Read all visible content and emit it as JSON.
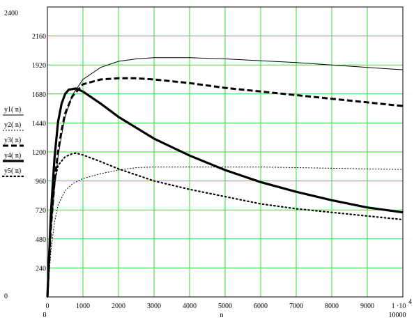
{
  "chart_data": {
    "type": "line",
    "xlabel": "n",
    "ylabel": "",
    "xlim": [
      0,
      10000
    ],
    "ylim": [
      0,
      2400
    ],
    "grid": true,
    "grid_color": "#33dd33",
    "line_color": "#000000",
    "x_ticks": [
      0,
      1000,
      2000,
      3000,
      4000,
      5000,
      6000,
      7000,
      8000,
      9000,
      10000
    ],
    "x_tick_labels": [
      "0",
      "1000",
      "2000",
      "3000",
      "4000",
      "5000",
      "6000",
      "7000",
      "8000",
      "9000",
      "1 ·10"
    ],
    "x_tick_exponent": "4",
    "x_range_min_label": "0",
    "x_range_max_label": "10000",
    "y_ticks": [
      0,
      240,
      480,
      720,
      960,
      1200,
      1440,
      1680,
      1920,
      2160,
      2400
    ],
    "y_tick_labels": [
      "0",
      "240",
      "480",
      "720",
      "960",
      "1200",
      "1440",
      "1680",
      "1920",
      "2160",
      "2400"
    ],
    "y_range_min_label": "0",
    "y_range_max_label": "2400",
    "legend_position": "left",
    "series": [
      {
        "name": "y1( n)",
        "style": "solid-thin",
        "points": [
          [
            0,
            0
          ],
          [
            100,
            550
          ],
          [
            200,
            900
          ],
          [
            300,
            1160
          ],
          [
            400,
            1340
          ],
          [
            500,
            1490
          ],
          [
            700,
            1670
          ],
          [
            1000,
            1800
          ],
          [
            1500,
            1900
          ],
          [
            2000,
            1950
          ],
          [
            2500,
            1970
          ],
          [
            3000,
            1980
          ],
          [
            4000,
            1980
          ],
          [
            5000,
            1970
          ],
          [
            6000,
            1955
          ],
          [
            7000,
            1940
          ],
          [
            8000,
            1920
          ],
          [
            9000,
            1900
          ],
          [
            10000,
            1880
          ]
        ]
      },
      {
        "name": "y2( n)",
        "style": "dashed-thin",
        "points": [
          [
            0,
            0
          ],
          [
            100,
            380
          ],
          [
            200,
            620
          ],
          [
            300,
            760
          ],
          [
            500,
            880
          ],
          [
            700,
            935
          ],
          [
            1000,
            980
          ],
          [
            1500,
            1020
          ],
          [
            2000,
            1050
          ],
          [
            2500,
            1070
          ],
          [
            3000,
            1075
          ],
          [
            4000,
            1075
          ],
          [
            5000,
            1075
          ],
          [
            6000,
            1075
          ],
          [
            7000,
            1070
          ],
          [
            8000,
            1065
          ],
          [
            9000,
            1060
          ],
          [
            10000,
            1055
          ]
        ]
      },
      {
        "name": "y3( n)",
        "style": "dashed-thick",
        "points": [
          [
            0,
            0
          ],
          [
            100,
            580
          ],
          [
            200,
            950
          ],
          [
            300,
            1200
          ],
          [
            400,
            1380
          ],
          [
            500,
            1520
          ],
          [
            700,
            1660
          ],
          [
            1000,
            1760
          ],
          [
            1500,
            1800
          ],
          [
            2000,
            1810
          ],
          [
            2500,
            1810
          ],
          [
            3000,
            1800
          ],
          [
            4000,
            1770
          ],
          [
            5000,
            1730
          ],
          [
            6000,
            1700
          ],
          [
            7000,
            1670
          ],
          [
            8000,
            1640
          ],
          [
            9000,
            1610
          ],
          [
            10000,
            1580
          ]
        ]
      },
      {
        "name": "y4( n)",
        "style": "solid-thick",
        "points": [
          [
            0,
            0
          ],
          [
            100,
            700
          ],
          [
            200,
            1150
          ],
          [
            300,
            1450
          ],
          [
            400,
            1600
          ],
          [
            500,
            1680
          ],
          [
            600,
            1715
          ],
          [
            800,
            1725
          ],
          [
            1000,
            1700
          ],
          [
            1500,
            1600
          ],
          [
            2000,
            1490
          ],
          [
            3000,
            1310
          ],
          [
            4000,
            1170
          ],
          [
            5000,
            1050
          ],
          [
            6000,
            950
          ],
          [
            7000,
            870
          ],
          [
            8000,
            800
          ],
          [
            9000,
            740
          ],
          [
            10000,
            700
          ]
        ]
      },
      {
        "name": "y5( n)",
        "style": "dotted",
        "points": [
          [
            0,
            0
          ],
          [
            100,
            650
          ],
          [
            200,
            950
          ],
          [
            300,
            1090
          ],
          [
            500,
            1160
          ],
          [
            700,
            1185
          ],
          [
            800,
            1190
          ],
          [
            1000,
            1175
          ],
          [
            1500,
            1120
          ],
          [
            2000,
            1060
          ],
          [
            3000,
            960
          ],
          [
            4000,
            890
          ],
          [
            5000,
            830
          ],
          [
            6000,
            770
          ],
          [
            7000,
            730
          ],
          [
            8000,
            700
          ],
          [
            9000,
            670
          ],
          [
            10000,
            640
          ]
        ]
      }
    ]
  }
}
